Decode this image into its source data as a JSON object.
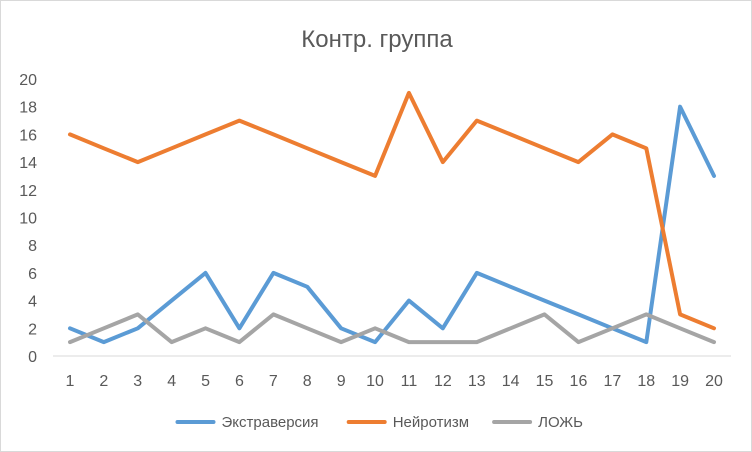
{
  "chart_data": {
    "type": "line",
    "title": "Контр. группа",
    "categories": [
      "1",
      "2",
      "3",
      "4",
      "5",
      "6",
      "7",
      "8",
      "9",
      "10",
      "11",
      "12",
      "13",
      "14",
      "15",
      "16",
      "17",
      "18",
      "19",
      "20"
    ],
    "series": [
      {
        "name": "Экстраверсия",
        "color": "#5b9bd5",
        "values": [
          2,
          1,
          2,
          4,
          6,
          2,
          6,
          5,
          2,
          1,
          4,
          2,
          6,
          5,
          4,
          3,
          2,
          1,
          18,
          13
        ]
      },
      {
        "name": "Нейротизм",
        "color": "#ed7d31",
        "values": [
          16,
          15,
          14,
          15,
          16,
          17,
          16,
          15,
          14,
          13,
          19,
          14,
          17,
          16,
          15,
          14,
          16,
          15,
          3,
          2
        ]
      },
      {
        "name": "ЛОЖЬ",
        "color": "#a5a5a5",
        "values": [
          1,
          2,
          3,
          1,
          2,
          1,
          3,
          2,
          1,
          2,
          1,
          1,
          1,
          2,
          3,
          1,
          2,
          3,
          2,
          1
        ]
      }
    ],
    "ylim": [
      0,
      20
    ],
    "yticks": [
      "0",
      "2",
      "4",
      "6",
      "8",
      "10",
      "12",
      "14",
      "16",
      "18",
      "20"
    ],
    "grid": false,
    "legend_position": "bottom"
  }
}
